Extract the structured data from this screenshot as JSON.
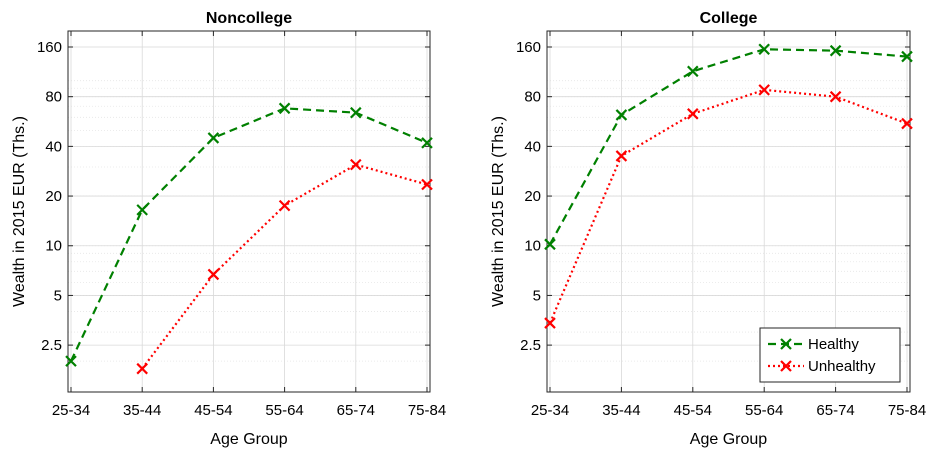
{
  "chart_data": [
    {
      "type": "line",
      "title": "Noncollege",
      "xlabel": "Age Group",
      "ylabel": "Wealth in 2015 EUR (Ths.)",
      "categories": [
        "25-34",
        "35-44",
        "45-54",
        "55-64",
        "65-74",
        "75-84"
      ],
      "y_scale": "log",
      "ylim": [
        1.3,
        200
      ],
      "yticks": [
        2.5,
        5,
        10,
        20,
        40,
        80,
        160
      ],
      "ytick_labels": [
        "2.5",
        "5",
        "10",
        "20",
        "40",
        "80",
        "160"
      ],
      "grid": true,
      "series": [
        {
          "name": "Healthy",
          "color": "#008000",
          "style": "dashed",
          "marker": "x",
          "values": [
            2.0,
            16.5,
            45,
            68,
            64,
            42
          ]
        },
        {
          "name": "Unhealthy",
          "color": "#ff0000",
          "style": "dotted",
          "marker": "x",
          "values": [
            null,
            1.8,
            6.7,
            17.5,
            31,
            23.5
          ]
        }
      ]
    },
    {
      "type": "line",
      "title": "College",
      "xlabel": "Age Group",
      "ylabel": "Wealth in 2015 EUR (Ths.)",
      "categories": [
        "25-34",
        "35-44",
        "45-54",
        "55-64",
        "65-74",
        "75-84"
      ],
      "y_scale": "log",
      "ylim": [
        1.3,
        200
      ],
      "yticks": [
        2.5,
        5,
        10,
        20,
        40,
        80,
        160
      ],
      "ytick_labels": [
        "2.5",
        "5",
        "10",
        "20",
        "40",
        "80",
        "160"
      ],
      "grid": true,
      "legend": "bottom-right",
      "series": [
        {
          "name": "Healthy",
          "color": "#008000",
          "style": "dashed",
          "marker": "x",
          "values": [
            10.2,
            62,
            114,
            155,
            152,
            140
          ]
        },
        {
          "name": "Unhealthy",
          "color": "#ff0000",
          "style": "dotted",
          "marker": "x",
          "values": [
            3.4,
            35,
            63,
            88,
            80,
            55
          ]
        }
      ]
    }
  ]
}
